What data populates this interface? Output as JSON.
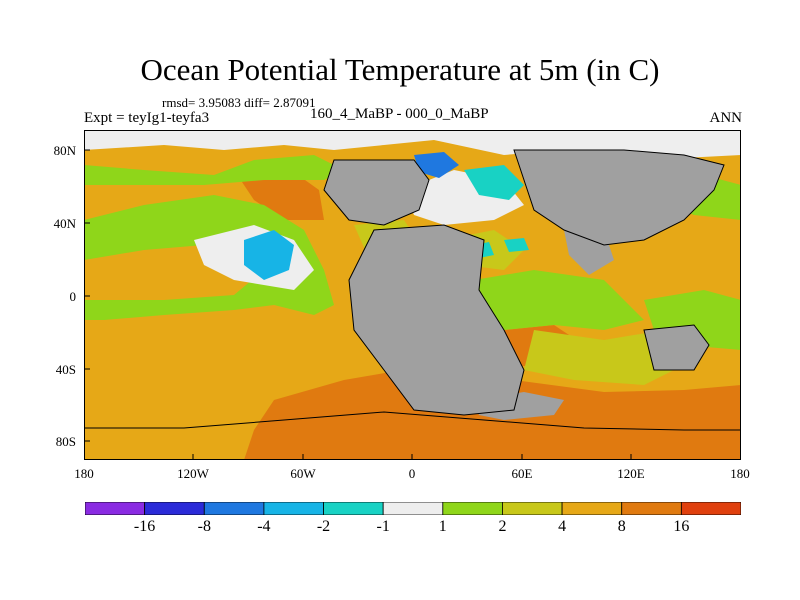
{
  "title": "Ocean Potential Temperature at 5m (in C)",
  "stats": "rmsd= 3.95083  diff= 2.87091",
  "experiment": "Expt = teyIg1-teyfa3",
  "period": "160_4_MaBP - 000_0_MaBP",
  "season": "ANN",
  "lat_labels": [
    "80N",
    "40N",
    "0",
    "40S",
    "80S"
  ],
  "lon_labels": [
    "180",
    "120W",
    "60W",
    "0",
    "60E",
    "120E",
    "180"
  ],
  "colorbar": {
    "colors": [
      "#8a2be2",
      "#2b2bd8",
      "#1f78e0",
      "#17b4e6",
      "#18d2c4",
      "#eeeeee",
      "#8fd61a",
      "#c8c81a",
      "#e6a817",
      "#e07a10",
      "#e0400e"
    ],
    "labels": [
      "-16",
      "-8",
      "-4",
      "-2",
      "-1",
      "1",
      "2",
      "4",
      "8",
      "16"
    ]
  },
  "map_colors": {
    "land": "#a0a0a0",
    "warm": "#e6a817",
    "hot": "#e07a10",
    "mild": "#c8c81a",
    "cool": "#8fd61a",
    "neutral": "#eeeeee",
    "cold": "#17b4e6",
    "cyan": "#18d2c4",
    "coldest": "#1f78e0"
  }
}
